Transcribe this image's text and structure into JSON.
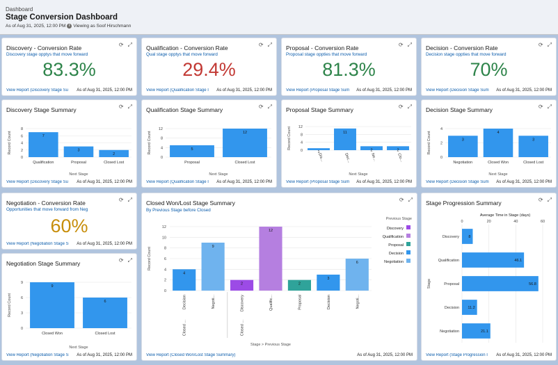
{
  "header": {
    "breadcrumb": "Dashboard",
    "title": "Stage Conversion Dashboard",
    "as_of": "As of Aug 31, 2025, 12:00 PM",
    "viewing": "Viewing as Soof Hirschmann"
  },
  "icons": {
    "refresh": "refresh-icon",
    "expand": "expand-icon",
    "info": "info-icon"
  },
  "colors": {
    "bar": "#3296ed",
    "green": "#2e844a",
    "red": "#c23934",
    "gold": "#c78e0b",
    "link": "#0b5cab"
  },
  "common": {
    "as_of": "As of Aug 31, 2025, 12:00 PM",
    "refresh_glyph": "⟳",
    "expand_glyph": "⤢"
  },
  "cards": {
    "discovery_rate": {
      "title": "Discovery - Conversion Rate",
      "subtitle": "Discovery stage opptys that move forward",
      "value": "83.3%",
      "link": "View Report (Discovery Stage Su"
    },
    "qualification_rate": {
      "title": "Qualification - Conversion Rate",
      "subtitle": "Qual stage opptys that move forward",
      "value": "29.4%",
      "link": "View Report (Qualification Stage I"
    },
    "proposal_rate": {
      "title": "Proposal - Conversion Rate",
      "subtitle": "Proposal stage oppties that move forward",
      "value": "81.3%",
      "link": "View Report (Proposal Stage Sum"
    },
    "decision_rate": {
      "title": "Decision - Conversion Rate",
      "subtitle": "Decision stage oppties that move forward",
      "value": "70%",
      "link": "View Report (Decision Stage Sum"
    },
    "discovery_summary": {
      "title": "Discovery Stage Summary",
      "link": "View Report (Discovery Stage Su"
    },
    "qualification_summary": {
      "title": "Qualification Stage Summary",
      "link": "View Report (Qualification Stage I"
    },
    "proposal_summary": {
      "title": "Proposal Stage Summary",
      "link": "View Report (Proposal Stage Sum"
    },
    "decision_summary": {
      "title": "Decision Stage Summary",
      "link": "View Report (Decision Stage Sum"
    },
    "negotiation_rate": {
      "title": "Negotiation - Conversion Rate",
      "subtitle": "Opportunities that move forward from Neg",
      "value": "60%",
      "link": "View Report (Negotiation Stage S"
    },
    "negotiation_summary": {
      "title": "Negotiation Stage Summary",
      "link": "View Report (Negotiation Stage S"
    },
    "closed_summary": {
      "title": "Closed Won/Lost Stage Summary",
      "subtitle": "By Previous Stage before Closed",
      "link": "View Report (Closed Won/Lost Stage Summary)"
    },
    "progression_summary": {
      "title": "Stage Progression Summary",
      "link": "View Report (Stage Progression I"
    }
  },
  "chart_data": [
    {
      "id": "discovery",
      "type": "bar",
      "categories": [
        "Qualification",
        "Proposal",
        "Closed Lost"
      ],
      "values": [
        7,
        3,
        2
      ],
      "ylabel": "Record Count",
      "xlabel": "Next Stage",
      "yticks": [
        0,
        2,
        4,
        6,
        8
      ],
      "ylim": [
        0,
        8
      ]
    },
    {
      "id": "qualification",
      "type": "bar",
      "categories": [
        "Proposal",
        "Closed Lost"
      ],
      "values": [
        5,
        12
      ],
      "ylabel": "Record Count",
      "xlabel": "Next Stage",
      "yticks": [
        0,
        4,
        8,
        12
      ],
      "ylim": [
        0,
        12
      ]
    },
    {
      "id": "proposal",
      "type": "bar",
      "categories": [
        "Dis...",
        "Dec...",
        "Ne...",
        "Clo..."
      ],
      "values": [
        1,
        11,
        2,
        2
      ],
      "ylabel": "Record Count",
      "xlabel": "Next Stage",
      "yticks": [
        0,
        4,
        8,
        12
      ],
      "ylim": [
        0,
        12
      ]
    },
    {
      "id": "decision",
      "type": "bar",
      "categories": [
        "Negotiation",
        "Closed Won",
        "Closed Lost"
      ],
      "values": [
        3,
        4,
        3
      ],
      "ylabel": "Record Count",
      "xlabel": "Next Stage",
      "yticks": [
        0,
        2,
        4
      ],
      "ylim": [
        0,
        4
      ]
    },
    {
      "id": "negotiation",
      "type": "bar",
      "categories": [
        "Closed Won",
        "Closed Lost"
      ],
      "values": [
        9,
        6
      ],
      "ylabel": "Record Count",
      "xlabel": "Next Stage",
      "yticks": [
        0,
        3,
        6,
        9
      ],
      "ylim": [
        0,
        9
      ]
    },
    {
      "id": "closed",
      "type": "bar",
      "groups": [
        "Closed ...",
        "Closed ..."
      ],
      "categories": [
        "Decision",
        "Negoti...",
        "Discovery",
        "Qualific...",
        "Proposal",
        "Decision",
        "Negoti..."
      ],
      "values": [
        4,
        9,
        2,
        12,
        2,
        3,
        6
      ],
      "colors": [
        "#3296ed",
        "#6fb3ee",
        "#9c4be6",
        "#b57fe0",
        "#2fa39a",
        "#3296ed",
        "#6fb3ee"
      ],
      "ylabel": "Record Count",
      "xlabel": "Stage  >  Previous Stage",
      "yticks": [
        0,
        2,
        4,
        6,
        8,
        10,
        12
      ],
      "ylim": [
        0,
        12
      ],
      "legend_title": "Previous Stage",
      "legend_position": "right",
      "legend": [
        {
          "name": "Discovery",
          "color": "#9c4be6"
        },
        {
          "name": "Qualification",
          "color": "#b57fe0"
        },
        {
          "name": "Proposal",
          "color": "#2fa39a"
        },
        {
          "name": "Decision",
          "color": "#3296ed"
        },
        {
          "name": "Negotiation",
          "color": "#6fb3ee"
        }
      ]
    },
    {
      "id": "progression",
      "type": "bar",
      "orientation": "horizontal",
      "categories": [
        "Discovery",
        "Qualification",
        "Proposal",
        "Decision",
        "Negotiation"
      ],
      "values": [
        8,
        46.1,
        56.8,
        11.2,
        21.1
      ],
      "xlabel_top": "Average Time in Stage (days)",
      "ylabel": "Stage",
      "xticks": [
        0,
        20,
        40,
        60
      ],
      "xlim": [
        0,
        60
      ]
    }
  ]
}
